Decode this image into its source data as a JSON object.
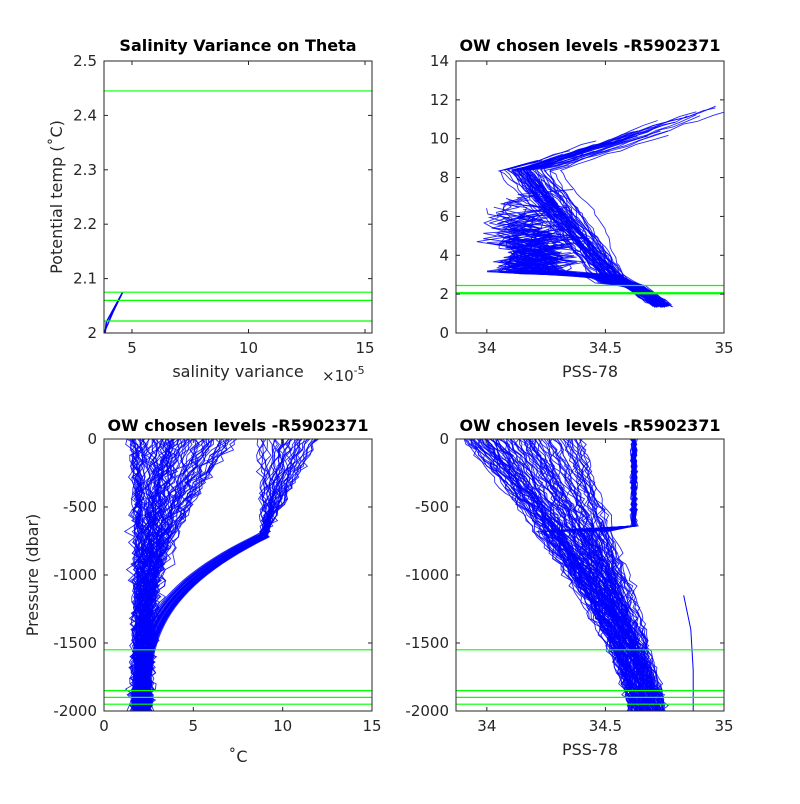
{
  "colors": {
    "profile": "#0000ff",
    "level": "#00ff00",
    "axis": "#262626"
  },
  "chart_data": [
    {
      "id": "p1",
      "type": "line",
      "title": "Salinity Variance on Theta",
      "xlabel": "salinity variance",
      "xexponent": "×10",
      "xexponent_power": "-5",
      "ylabel": "Potential temp (˚C)",
      "xlim": [
        3.8,
        15.3
      ],
      "ylim": [
        2.0,
        2.5
      ],
      "xticks": [
        5,
        10,
        15
      ],
      "xtick_labels": [
        "5",
        "10",
        "15"
      ],
      "yticks": [
        2.0,
        2.1,
        2.2,
        2.3,
        2.4,
        2.5
      ],
      "ytick_labels": [
        "2",
        "2.1",
        "2.2",
        "2.3",
        "2.4",
        "2.5"
      ],
      "series": [
        {
          "x": [
            3.8,
            4.2,
            4.6,
            3.9,
            3.85
          ],
          "y": [
            2.0,
            2.04,
            2.075,
            2.02,
            2.0
          ]
        }
      ],
      "levels_y": [
        2.445,
        2.075,
        2.06,
        2.022
      ]
    },
    {
      "id": "p2",
      "type": "line",
      "title": "OW chosen levels -R5902371",
      "xlabel": "PSS-78",
      "ylabel": "",
      "xlim": [
        33.87,
        35.0
      ],
      "ylim": [
        0,
        14
      ],
      "xticks": [
        34,
        34.5,
        35
      ],
      "xtick_labels": [
        "34",
        "34.5",
        "35"
      ],
      "yticks": [
        0,
        2,
        4,
        6,
        8,
        10,
        12,
        14
      ],
      "ytick_labels": [
        "0",
        "2",
        "4",
        "6",
        "8",
        "10",
        "12",
        "14"
      ],
      "levels_y": [
        2.445,
        2.075,
        2.06,
        2.022
      ]
    },
    {
      "id": "p3",
      "type": "line",
      "title": "OW chosen levels -R5902371",
      "xlabel": "˚C",
      "ylabel": "Pressure (dbar)",
      "xlim": [
        0,
        15
      ],
      "ylim": [
        -2000,
        0
      ],
      "xticks": [
        0,
        5,
        10,
        15
      ],
      "xtick_labels": [
        "0",
        "5",
        "10",
        "15"
      ],
      "yticks": [
        -2000,
        -1500,
        -1000,
        -500,
        0
      ],
      "ytick_labels": [
        "-2000",
        "-1500",
        "-1000",
        "-500",
        "0"
      ],
      "levels_y": [
        -1550,
        -1850,
        -1900,
        -1950
      ]
    },
    {
      "id": "p4",
      "type": "line",
      "title": "OW chosen levels -R5902371",
      "xlabel": "PSS-78",
      "ylabel": "",
      "xlim": [
        33.87,
        35.0
      ],
      "ylim": [
        -2000,
        0
      ],
      "xticks": [
        34,
        34.5,
        35
      ],
      "xtick_labels": [
        "34",
        "34.5",
        "35"
      ],
      "yticks": [
        -2000,
        -1500,
        -1000,
        -500,
        0
      ],
      "ytick_labels": [
        "-2000",
        "-1500",
        "-1000",
        "-500",
        "0"
      ],
      "levels_y": [
        -1550,
        -1850,
        -1900,
        -1950
      ]
    }
  ]
}
